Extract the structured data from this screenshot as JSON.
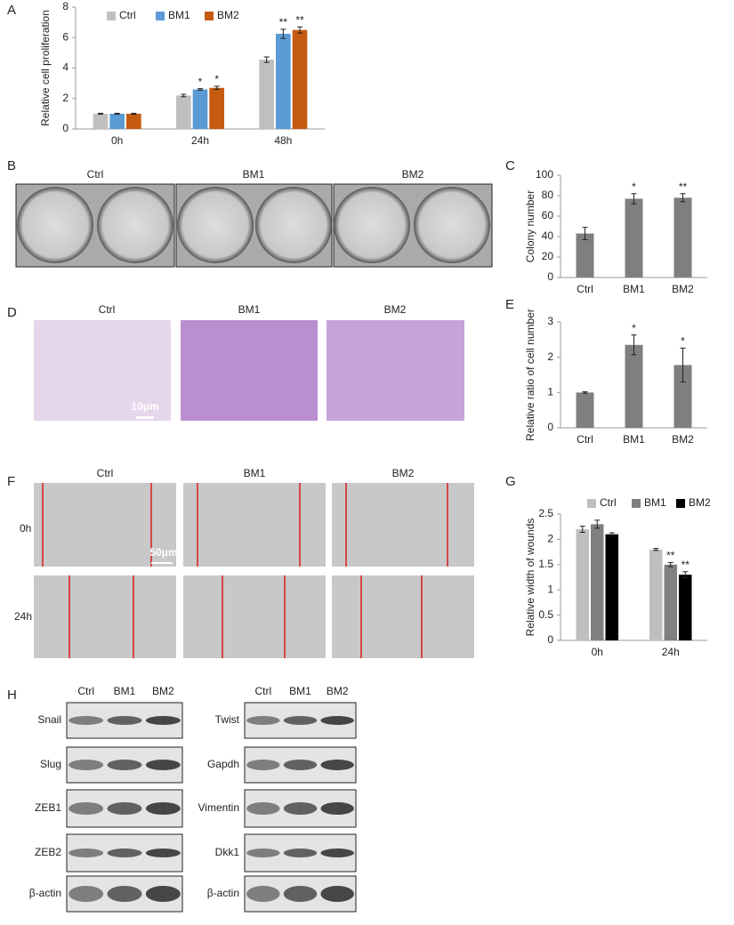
{
  "chart_data": [
    {
      "type": "bar",
      "y_label": "Relative cell proliferation",
      "categories": [
        "0h",
        "24h",
        "48h"
      ],
      "series": [
        {
          "name": "Ctrl",
          "color": "#bfbfbf",
          "values": [
            1,
            2.2,
            4.55
          ],
          "errors": [
            0.03,
            0.08,
            0.18
          ],
          "labels": [
            null,
            null,
            null
          ]
        },
        {
          "name": "BM1",
          "color": "#5b9bd5",
          "values": [
            1,
            2.6,
            6.25
          ],
          "errors": [
            0.03,
            0.05,
            0.3
          ],
          "labels": [
            null,
            "*",
            "**"
          ]
        },
        {
          "name": "BM2",
          "color": "#c55a11",
          "values": [
            1,
            2.7,
            6.5
          ],
          "errors": [
            0.03,
            0.1,
            0.2
          ],
          "labels": [
            null,
            "*",
            "**"
          ]
        }
      ],
      "ylim": [
        0,
        8
      ],
      "yticks": [
        0,
        2,
        4,
        6,
        8
      ],
      "legend": "top"
    },
    {
      "type": "bar",
      "y_label": "Colony number",
      "categories": [
        "Ctrl",
        "BM1",
        "BM2"
      ],
      "values": [
        43,
        77,
        78
      ],
      "errors": [
        6,
        5,
        4
      ],
      "labels": [
        null,
        "*",
        "**"
      ],
      "color": "#7f7f7f",
      "ylim": [
        0,
        100
      ],
      "yticks": [
        0,
        20,
        40,
        60,
        80,
        100
      ]
    },
    {
      "type": "bar",
      "y_label": "Relative ratio of cell number",
      "categories": [
        "Ctrl",
        "BM1",
        "BM2"
      ],
      "values": [
        1,
        2.35,
        1.78
      ],
      "errors": [
        0.02,
        0.28,
        0.48
      ],
      "labels": [
        null,
        "*",
        "*"
      ],
      "color": "#7f7f7f",
      "ylim": [
        0,
        3
      ],
      "yticks": [
        0,
        1,
        2,
        3
      ]
    },
    {
      "type": "bar",
      "y_label": "Relative width of wounds",
      "categories": [
        "0h",
        "24h"
      ],
      "series": [
        {
          "name": "Ctrl",
          "color": "#bfbfbf",
          "values": [
            2.2,
            1.8
          ],
          "errors": [
            0.06,
            0.02
          ],
          "labels": [
            null,
            null
          ]
        },
        {
          "name": "BM1",
          "color": "#808080",
          "values": [
            2.3,
            1.5
          ],
          "errors": [
            0.08,
            0.04
          ],
          "labels": [
            null,
            "**"
          ]
        },
        {
          "name": "BM2",
          "color": "#000000",
          "values": [
            2.1,
            1.3
          ],
          "errors": [
            0.03,
            0.06
          ],
          "labels": [
            null,
            "**"
          ]
        }
      ],
      "ylim": [
        0,
        2.5
      ],
      "yticks": [
        0,
        0.5,
        1,
        1.5,
        2,
        2.5
      ],
      "legend": "top"
    }
  ],
  "panel_letters": [
    "A",
    "B",
    "C",
    "D",
    "E",
    "F",
    "G",
    "H"
  ],
  "colony_images": {
    "labels": [
      "Ctrl",
      "BM1",
      "BM2"
    ]
  },
  "transwell_images": {
    "labels": [
      "Ctrl",
      "BM1",
      "BM2"
    ],
    "scale_bar": "10μm"
  },
  "wound_images": {
    "labels": [
      "Ctrl",
      "BM1",
      "BM2"
    ],
    "times": [
      "0h",
      "24h"
    ],
    "scale_bar": "50μm"
  },
  "western_blots": {
    "left": {
      "lanes": [
        "Ctrl",
        "BM1",
        "BM2"
      ],
      "proteins": [
        "Snail",
        "Slug",
        "ZEB1",
        "ZEB2",
        "β-actin"
      ]
    },
    "right": {
      "lanes": [
        "Ctrl",
        "BM1",
        "BM2"
      ],
      "proteins": [
        "Twist",
        "Gapdh",
        "Vimentin",
        "Dkk1",
        "β-actin"
      ]
    }
  }
}
